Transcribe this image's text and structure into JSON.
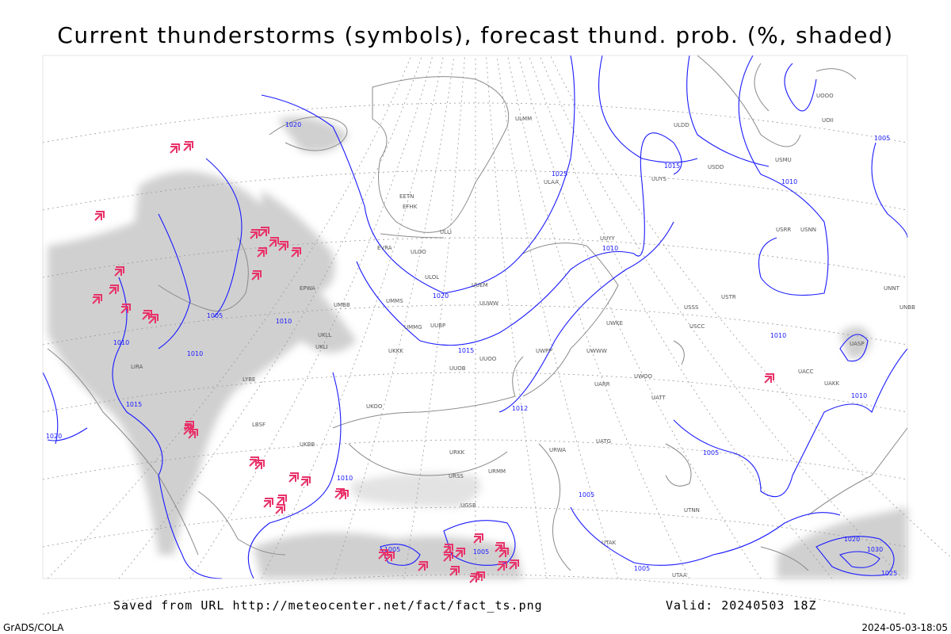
{
  "header": {
    "title": "Current thunderstorms (symbols), forecast thund. prob. (%, shaded)"
  },
  "footer": {
    "source": "Saved from URL  http://meteocenter.net/fact/fact_ts.png",
    "valid": "Valid: 20240503 18Z",
    "credit": "GrADS/COLA",
    "timestamp": "2024-05-03-18:05"
  },
  "isobar_labels": [
    "1020",
    "1025",
    "1015",
    "1010",
    "1020",
    "1015",
    "1010",
    "1010",
    "1005",
    "1010",
    "1015",
    "1020",
    "1012",
    "1010",
    "1005",
    "1010",
    "1010",
    "1005",
    "1010",
    "1005",
    "1005",
    "1005",
    "1005",
    "1030",
    "1025",
    "1020"
  ],
  "stations": [
    "ULMM",
    "ULAA",
    "ULOL",
    "UUEM",
    "UUWW",
    "UUOO",
    "UUOB",
    "UKKK",
    "UMMS",
    "UMMG",
    "UUBP",
    "EFHK",
    "EETN",
    "ULLI",
    "EVRA",
    "ULOO",
    "UKLL",
    "UKLI",
    "EPWA",
    "UMBB",
    "UKBB",
    "UKOO",
    "URKK",
    "URMM",
    "URSS",
    "UGSB",
    "UTAA",
    "UATT",
    "UWOO",
    "USSS",
    "USCC",
    "USRR",
    "USNN",
    "USTR",
    "UACC",
    "UAKK",
    "UASP",
    "UNBB",
    "UNNT",
    "UOOO",
    "UOII",
    "ULDD",
    "USDD",
    "USMU",
    "UUYS",
    "UUYY",
    "UWPP",
    "UWKE",
    "UWWW",
    "UARR",
    "UATG",
    "URWA",
    "UTNN",
    "UTAK",
    "LBSF",
    "LYBE",
    "LIRA"
  ]
}
